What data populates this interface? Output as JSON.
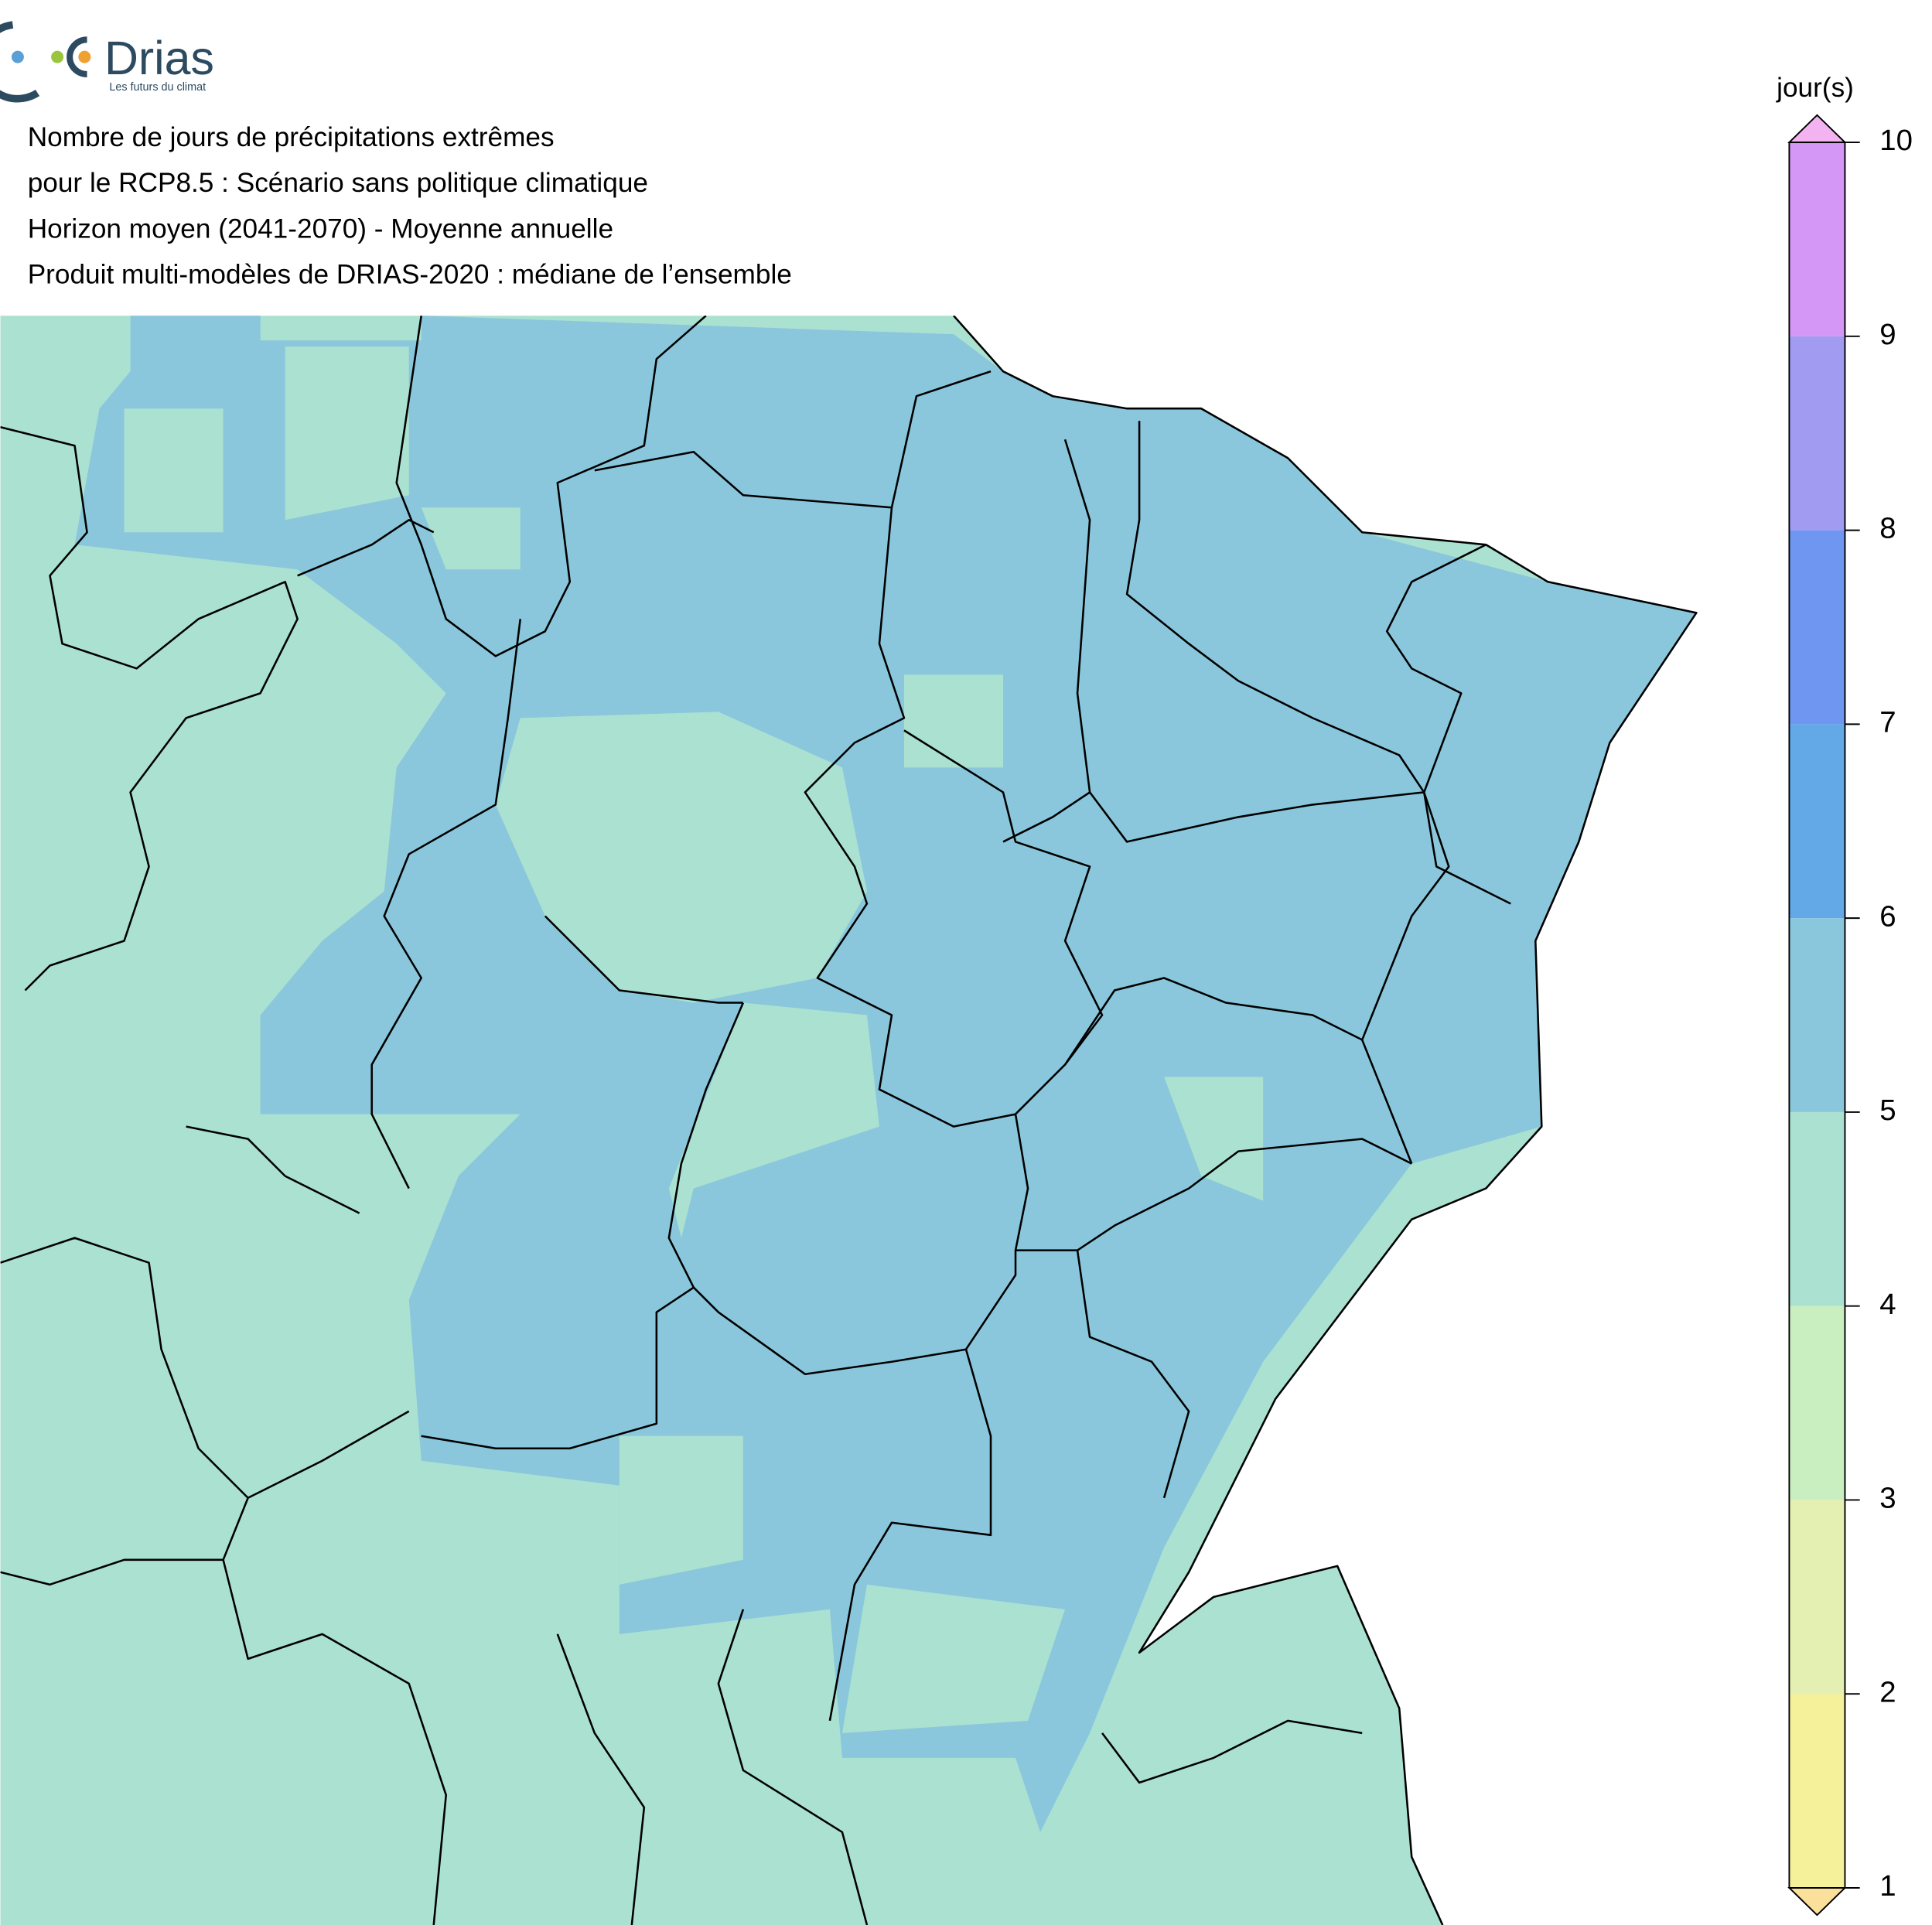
{
  "logo": {
    "name": "Drias",
    "tagline": "Les futurs du climat"
  },
  "title_lines": [
    "Nombre de jours de précipitations extrêmes",
    "pour le RCP8.5 : Scénario sans politique climatique",
    "Horizon moyen (2041-2070) - Moyenne annuelle",
    "Produit multi-modèles de DRIAS-2020 : médiane de l’ensemble"
  ],
  "legend": {
    "unit": "jour(s)",
    "ticks": [
      1,
      2,
      3,
      4,
      5,
      6,
      7,
      8,
      9,
      10
    ],
    "colors": [
      "#f5f09a",
      "#e4f0b2",
      "#c9eec0",
      "#abe1d1",
      "#8ac7dc",
      "#63a9e8",
      "#6f97f1",
      "#a19cf1",
      "#d497f6"
    ],
    "under_color": "#fbe09c",
    "over_color": "#f3b3f1"
  }
}
